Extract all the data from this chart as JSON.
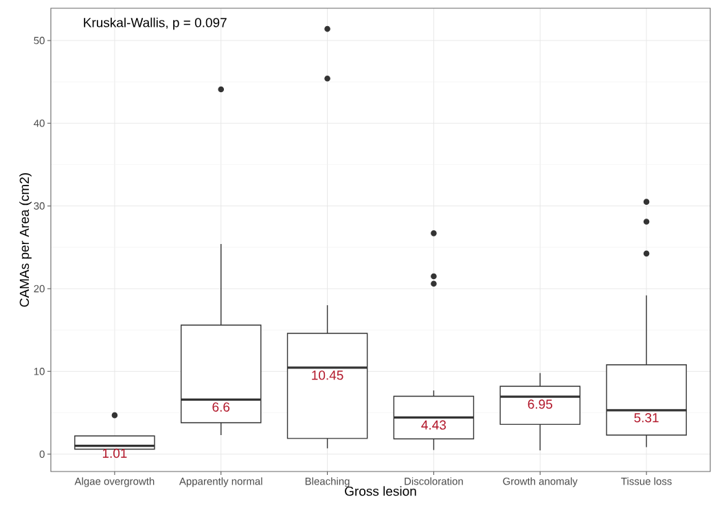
{
  "chart_data": {
    "type": "box",
    "xlabel": "Gross lesion",
    "ylabel": "CAMAs per Area (cm2)",
    "annotations": [
      "Kruskal-Wallis, p = 0.097"
    ],
    "categories": [
      "Algae overgrowth",
      "Apparently normal",
      "Bleaching",
      "Discoloration",
      "Growth anomaly",
      "Tissue loss"
    ],
    "color": "#333333",
    "boxes": [
      {
        "low": 0.5,
        "q1": 0.6,
        "median": 1.01,
        "q3": 2.2,
        "high": 2.2,
        "outliers": [
          4.7
        ]
      },
      {
        "low": 2.3,
        "q1": 3.8,
        "median": 6.6,
        "q3": 15.6,
        "high": 25.4,
        "outliers": [
          44.1
        ]
      },
      {
        "low": 0.7,
        "q1": 1.9,
        "median": 10.45,
        "q3": 14.6,
        "high": 18.0,
        "outliers": [
          45.4,
          51.4
        ]
      },
      {
        "low": 0.5,
        "q1": 1.85,
        "median": 4.43,
        "q3": 7.0,
        "high": 7.7,
        "outliers": [
          20.6,
          21.5,
          26.7
        ]
      },
      {
        "low": 0.45,
        "q1": 3.6,
        "median": 6.95,
        "q3": 8.2,
        "high": 9.8
      },
      {
        "low": 0.85,
        "q1": 2.3,
        "median": 5.31,
        "q3": 10.8,
        "high": 19.2,
        "outliers": [
          24.25,
          28.1,
          30.5
        ]
      }
    ],
    "value_labels": [
      "1.01",
      "6.6",
      "10.45",
      "4.43",
      "6.95",
      "5.31"
    ],
    "ylim": [
      -2.1,
      53.9
    ],
    "yticks": [
      0,
      10,
      20,
      30,
      40,
      50
    ],
    "grid": true
  }
}
